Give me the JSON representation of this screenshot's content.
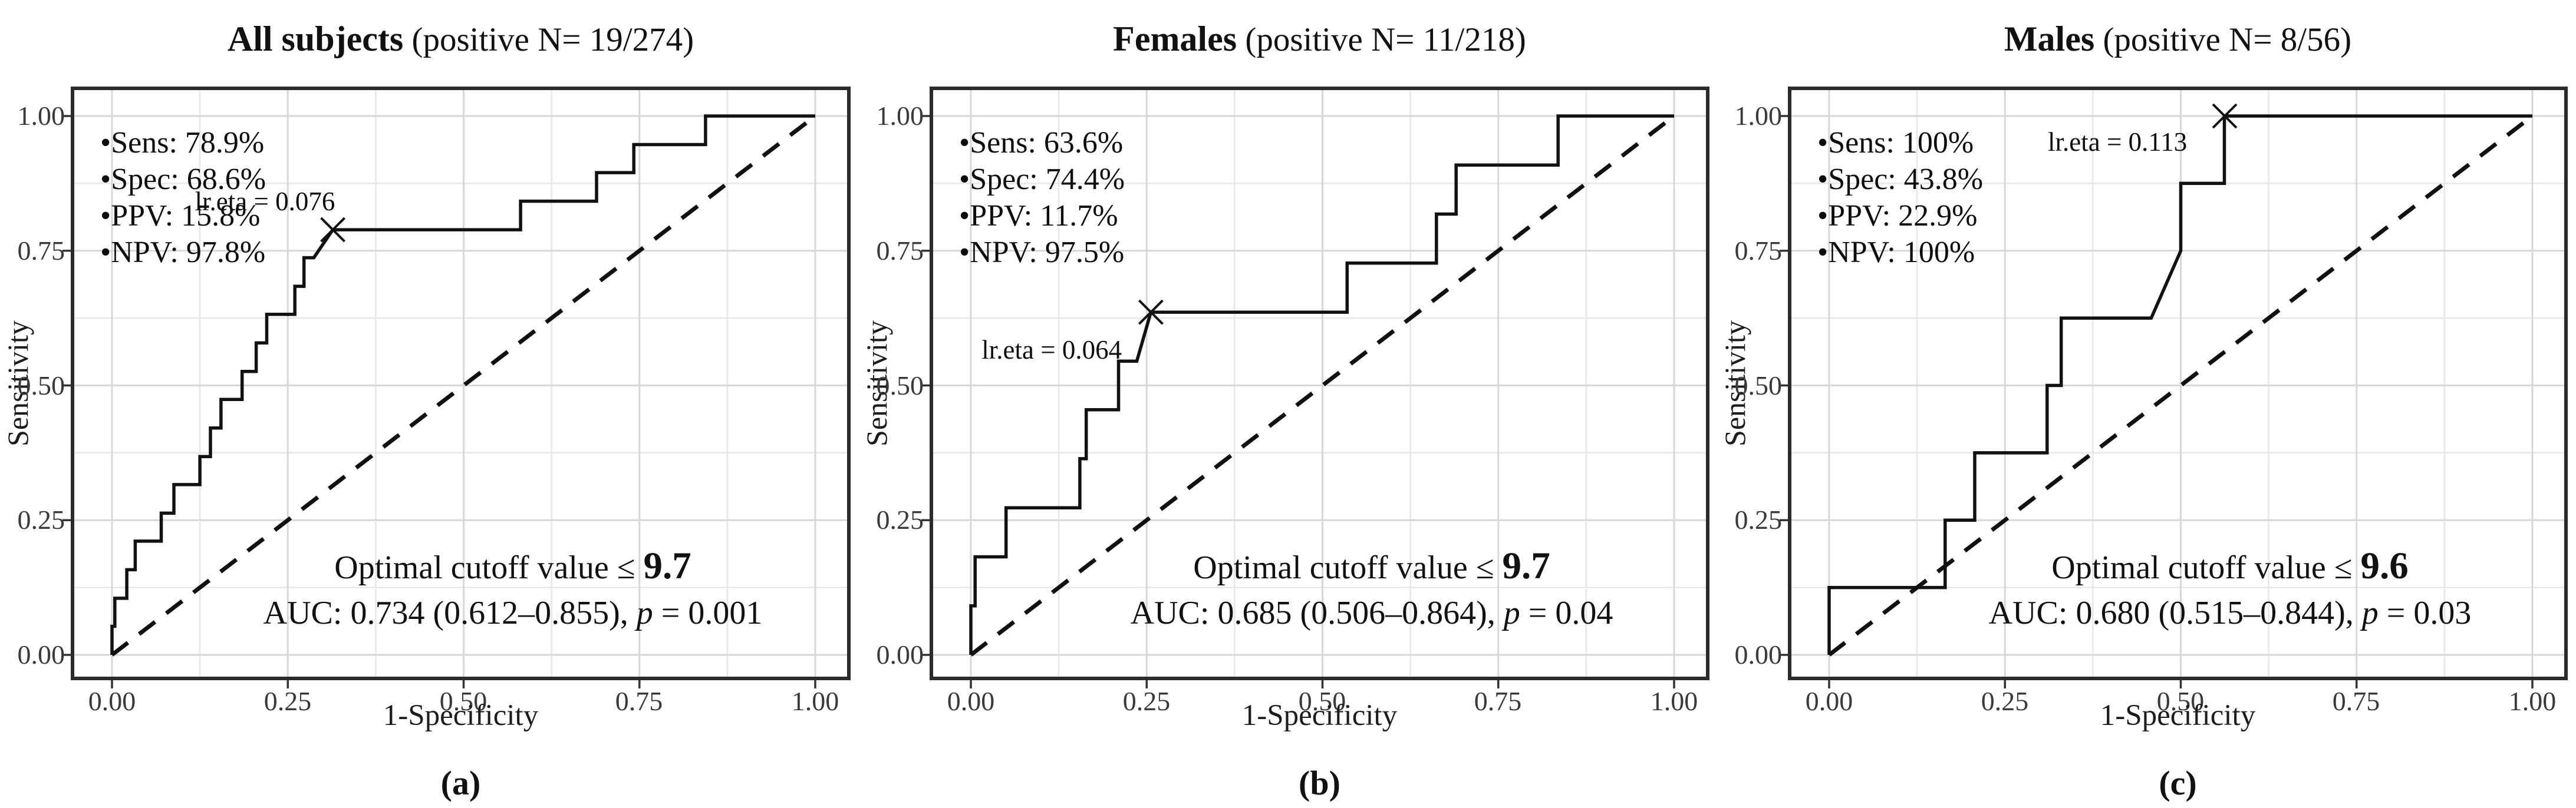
{
  "figure": {
    "background": "#ffffff",
    "colors": {
      "curve": "#111111",
      "diagonal": "#111111",
      "grid_major": "#d7d7d7",
      "grid_minor": "#e7e7e7",
      "panel_border": "#2b2b2b",
      "tick_mark": "#333333",
      "tick_text": "#3a3a3a",
      "text": "#111111"
    },
    "axes": {
      "x_label": "1-Specificity",
      "y_label": "Sensitivity",
      "x_ticks": [
        "0.00",
        "0.25",
        "0.50",
        "0.75",
        "1.00"
      ],
      "y_ticks": [
        "1.00",
        "0.75",
        "0.50",
        "0.25",
        "0.00"
      ]
    }
  },
  "chart_data": [
    {
      "type": "line",
      "panel": "a",
      "caption": "(a)",
      "title_bold": "All subjects",
      "title_rest": " (positive N= 19/274)",
      "stats": [
        "•Sens: 78.9%",
        "•Spec: 68.6%",
        "•PPV: 15.8%",
        "•NPV: 97.8%"
      ],
      "lr_eta_label": "lr.eta = 0.076",
      "lr_eta_pos": {
        "x": 0.2175,
        "y": 0.842
      },
      "optimal_point": {
        "x": 0.314,
        "y": 0.789
      },
      "cutoff_prefix": "Optimal cutoff value ≤ ",
      "cutoff_value": "9.7",
      "auc_text": "AUC: 0.734 (0.612–0.855), ",
      "p_symbol": "p",
      "p_rest": " = 0.001",
      "xlabel": "1-Specificity",
      "ylabel": "Sensitivity",
      "xlim": [
        0,
        1
      ],
      "ylim": [
        0,
        1
      ],
      "grid": true,
      "diagonal_reference": true,
      "roc_points": [
        [
          0,
          0
        ],
        [
          0,
          0.053
        ],
        [
          0.004,
          0.053
        ],
        [
          0.004,
          0.105
        ],
        [
          0.021,
          0.105
        ],
        [
          0.021,
          0.158
        ],
        [
          0.033,
          0.158
        ],
        [
          0.033,
          0.211
        ],
        [
          0.07,
          0.211
        ],
        [
          0.07,
          0.263
        ],
        [
          0.088,
          0.263
        ],
        [
          0.088,
          0.316
        ],
        [
          0.125,
          0.316
        ],
        [
          0.125,
          0.368
        ],
        [
          0.14,
          0.368
        ],
        [
          0.14,
          0.421
        ],
        [
          0.155,
          0.421
        ],
        [
          0.155,
          0.474
        ],
        [
          0.185,
          0.474
        ],
        [
          0.185,
          0.526
        ],
        [
          0.205,
          0.526
        ],
        [
          0.205,
          0.579
        ],
        [
          0.22,
          0.579
        ],
        [
          0.22,
          0.632
        ],
        [
          0.26,
          0.632
        ],
        [
          0.26,
          0.684
        ],
        [
          0.273,
          0.684
        ],
        [
          0.273,
          0.737
        ],
        [
          0.287,
          0.737
        ],
        [
          0.314,
          0.789
        ],
        [
          0.581,
          0.789
        ],
        [
          0.581,
          0.842
        ],
        [
          0.689,
          0.842
        ],
        [
          0.689,
          0.895
        ],
        [
          0.742,
          0.895
        ],
        [
          0.742,
          0.947
        ],
        [
          0.844,
          0.947
        ],
        [
          0.844,
          1
        ],
        [
          1,
          1
        ]
      ]
    },
    {
      "type": "line",
      "panel": "b",
      "caption": "(b)",
      "title_bold": "Females",
      "title_rest": " (positive N= 11/218)",
      "stats": [
        "•Sens: 63.6%",
        "•Spec: 74.4%",
        "•PPV: 11.7%",
        "•NPV: 97.5%"
      ],
      "lr_eta_label": "lr.eta = 0.064",
      "lr_eta_pos": {
        "x": 0.115,
        "y": 0.566
      },
      "optimal_point": {
        "x": 0.256,
        "y": 0.636
      },
      "cutoff_prefix": "Optimal cutoff value ≤ ",
      "cutoff_value": "9.7",
      "auc_text": "AUC: 0.685 (0.506–0.864), ",
      "p_symbol": "p",
      "p_rest": " = 0.04",
      "xlabel": "1-Specificity",
      "ylabel": "Sensitivity",
      "xlim": [
        0,
        1
      ],
      "ylim": [
        0,
        1
      ],
      "grid": true,
      "diagonal_reference": true,
      "roc_points": [
        [
          0,
          0
        ],
        [
          0,
          0.091
        ],
        [
          0.006,
          0.091
        ],
        [
          0.006,
          0.182
        ],
        [
          0.05,
          0.182
        ],
        [
          0.05,
          0.273
        ],
        [
          0.155,
          0.273
        ],
        [
          0.155,
          0.364
        ],
        [
          0.164,
          0.364
        ],
        [
          0.164,
          0.455
        ],
        [
          0.21,
          0.455
        ],
        [
          0.21,
          0.545
        ],
        [
          0.236,
          0.545
        ],
        [
          0.256,
          0.636
        ],
        [
          0.535,
          0.636
        ],
        [
          0.535,
          0.727
        ],
        [
          0.662,
          0.727
        ],
        [
          0.662,
          0.818
        ],
        [
          0.69,
          0.818
        ],
        [
          0.69,
          0.909
        ],
        [
          0.835,
          0.909
        ],
        [
          0.835,
          1
        ],
        [
          1,
          1
        ]
      ]
    },
    {
      "type": "line",
      "panel": "c",
      "caption": "(c)",
      "title_bold": "Males",
      "title_rest": " (positive N= 8/56)",
      "stats": [
        "•Sens: 100%",
        "•Spec: 43.8%",
        "•PPV: 22.9%",
        "•NPV: 100%"
      ],
      "lr_eta_label": "lr.eta = 0.113",
      "lr_eta_pos": {
        "x": 0.41,
        "y": 0.952
      },
      "optimal_point": {
        "x": 0.5625,
        "y": 1.0
      },
      "cutoff_prefix": "Optimal cutoff value ≤ ",
      "cutoff_value": "9.6",
      "auc_text": "AUC: 0.680 (0.515–0.844), ",
      "p_symbol": "p",
      "p_rest": " = 0.03",
      "xlabel": "1-Specificity",
      "ylabel": "Sensitivity",
      "xlim": [
        0,
        1
      ],
      "ylim": [
        0,
        1
      ],
      "grid": true,
      "diagonal_reference": true,
      "roc_points": [
        [
          0,
          0
        ],
        [
          0,
          0.125
        ],
        [
          0.165,
          0.125
        ],
        [
          0.165,
          0.25
        ],
        [
          0.207,
          0.25
        ],
        [
          0.207,
          0.375
        ],
        [
          0.31,
          0.375
        ],
        [
          0.31,
          0.5
        ],
        [
          0.33,
          0.5
        ],
        [
          0.33,
          0.625
        ],
        [
          0.458,
          0.625
        ],
        [
          0.5,
          0.75
        ],
        [
          0.5,
          0.875
        ],
        [
          0.562,
          0.875
        ],
        [
          0.562,
          1
        ],
        [
          1,
          1
        ]
      ]
    }
  ]
}
